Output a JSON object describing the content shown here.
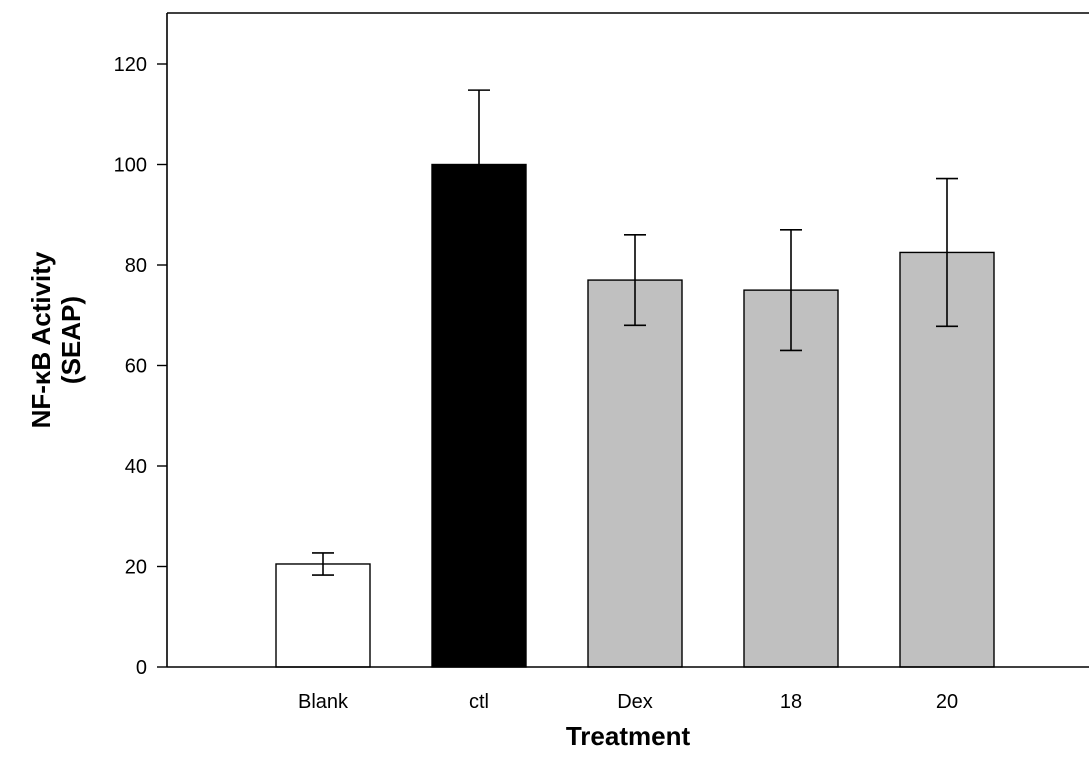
{
  "chart_data": {
    "type": "bar",
    "categories": [
      "Blank",
      "ctl",
      "Dex",
      "18",
      "20"
    ],
    "values": [
      20.5,
      100,
      77,
      75,
      82.5
    ],
    "error": [
      2.2,
      14.8,
      9,
      12,
      14.7
    ],
    "bar_colors": [
      "#ffffff",
      "#000000",
      "#c0c0c0",
      "#c0c0c0",
      "#c0c0c0"
    ],
    "xlabel": "Treatment",
    "ylabel_line1": "NF-κB Activity",
    "ylabel_line2": "(SEAP)",
    "ylim": [
      0,
      130
    ],
    "yticks": [
      0,
      20,
      40,
      60,
      80,
      100,
      120
    ],
    "grid": false
  }
}
